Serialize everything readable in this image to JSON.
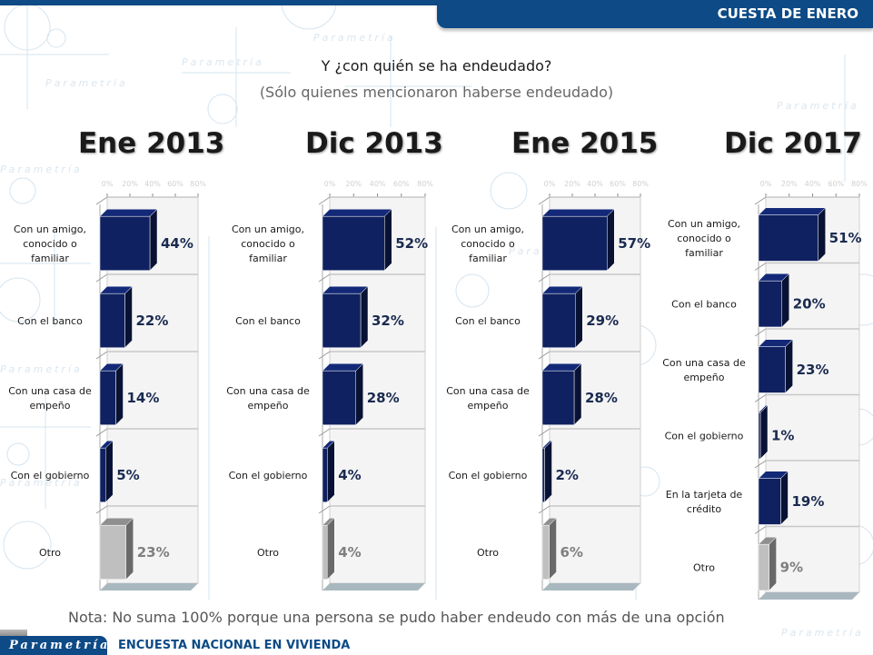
{
  "header": {
    "section_title": "CUESTA DE ENERO"
  },
  "question": {
    "title": "Y ¿con quién se ha endeudado?",
    "subtitle": "(Sólo quienes mencionaron haberse endeudado)"
  },
  "colors": {
    "bar_main": "#0f2160",
    "bar_other": "#bfbfbf",
    "brand": "#0d4a86"
  },
  "chart_data": [
    {
      "type": "bar",
      "orientation": "horizontal",
      "title": "Ene 2013",
      "xlim": [
        0,
        80
      ],
      "xticks": [
        "0%",
        "20%",
        "40%",
        "60%",
        "80%"
      ],
      "categories": [
        "Con un amigo, conocido o familiar",
        "Con el banco",
        "Con una casa de empeño",
        "Con el gobierno",
        "Otro"
      ],
      "values": [
        44,
        22,
        14,
        5,
        23
      ],
      "labels": [
        "44%",
        "22%",
        "14%",
        "5%",
        "23%"
      ]
    },
    {
      "type": "bar",
      "orientation": "horizontal",
      "title": "Dic 2013",
      "xlim": [
        0,
        80
      ],
      "xticks": [
        "0%",
        "20%",
        "40%",
        "60%",
        "80%"
      ],
      "categories": [
        "Con un amigo, conocido o familiar",
        "Con el banco",
        "Con una casa de empeño",
        "Con el gobierno",
        "Otro"
      ],
      "values": [
        52,
        32,
        28,
        4,
        4
      ],
      "labels": [
        "52%",
        "32%",
        "28%",
        "4%",
        "4%"
      ]
    },
    {
      "type": "bar",
      "orientation": "horizontal",
      "title": "Ene 2015",
      "xlim": [
        0,
        80
      ],
      "xticks": [
        "0%",
        "20%",
        "40%",
        "60%",
        "80%"
      ],
      "categories": [
        "Con un amigo, conocido o familiar",
        "Con el banco",
        "Con una casa de empeño",
        "Con el gobierno",
        "Otro"
      ],
      "values": [
        57,
        29,
        28,
        2,
        6
      ],
      "labels": [
        "57%",
        "29%",
        "28%",
        "2%",
        "6%"
      ]
    },
    {
      "type": "bar",
      "orientation": "horizontal",
      "title": "Dic 2017",
      "xlim": [
        0,
        80
      ],
      "xticks": [
        "0%",
        "20%",
        "40%",
        "60%",
        "80%"
      ],
      "categories": [
        "Con un amigo, conocido o familiar",
        "Con el banco",
        "Con una casa de empeño",
        "Con el gobierno",
        "En la tarjeta de crédito",
        "Otro"
      ],
      "values": [
        51,
        20,
        23,
        1,
        19,
        9
      ],
      "labels": [
        "51%",
        "20%",
        "23%",
        "1%",
        "19%",
        "9%"
      ]
    }
  ],
  "note": "Nota: No suma 100% porque una persona se pudo haber endeudo con más de una opción",
  "footer": {
    "logo": "Parametría",
    "survey": "ENCUESTA NACIONAL EN VIVIENDA"
  }
}
